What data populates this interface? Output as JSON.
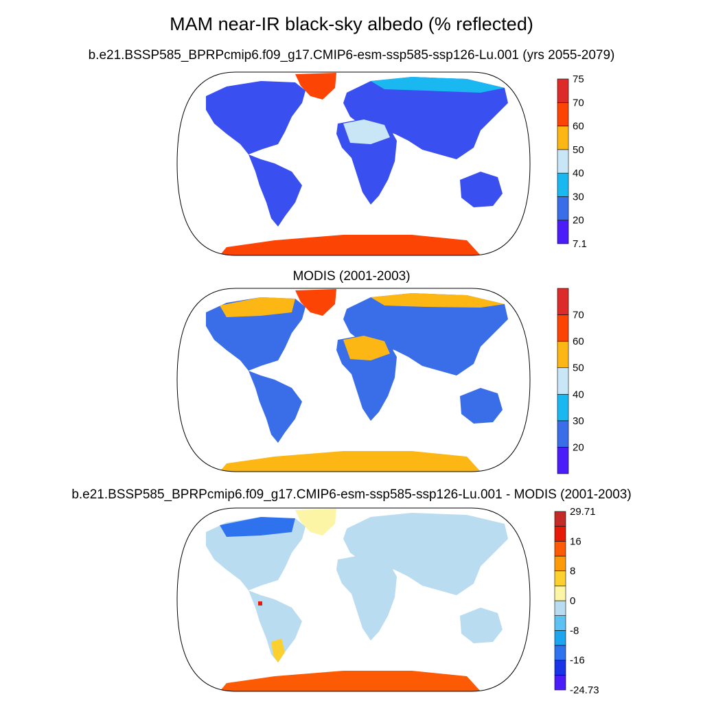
{
  "figure": {
    "title": "MAM near-IR black-sky albedo (% reflected)"
  },
  "panels": [
    {
      "id": "model",
      "title": "b.e21.BSSP585_BPRPcmip6.f09_g17.CMIP6-esm-ssp585-ssp126-Lu.001 (yrs 2055-2079)",
      "colorbar": {
        "colors": [
          "#4a1cf7",
          "#3a6ee8",
          "#1ab8f0",
          "#c9e6f7",
          "#fcb714",
          "#fc4404",
          "#dc2b28"
        ],
        "labels": [
          "7.1",
          "20",
          "30",
          "40",
          "50",
          "60",
          "70",
          "75"
        ]
      }
    },
    {
      "id": "obs",
      "title": "MODIS (2001-2003)",
      "colorbar": {
        "colors": [
          "#4a1cf7",
          "#3a6ee8",
          "#1ab8f0",
          "#c9e6f7",
          "#fcb714",
          "#fc4404",
          "#dc2b28"
        ],
        "labels": [
          "",
          "20",
          "30",
          "40",
          "50",
          "60",
          "70",
          ""
        ]
      }
    },
    {
      "id": "diff",
      "title": "b.e21.BSSP585_BPRPcmip6.f09_g17.CMIP6-esm-ssp585-ssp126-Lu.001 - MODIS (2001-2003)",
      "colorbar": {
        "colors": [
          "#4a1cf7",
          "#1b33e6",
          "#2f72ee",
          "#1da5f0",
          "#5dc1f2",
          "#b9dcf0",
          "#fdf5a6",
          "#fcd02e",
          "#fc9a0a",
          "#fc5a04",
          "#e51a08",
          "#c42a26"
        ],
        "labels": [
          "-24.73",
          "",
          "-16",
          "",
          "-8",
          "",
          "0",
          "",
          "8",
          "",
          "16",
          "",
          "29.71"
        ]
      }
    }
  ]
}
